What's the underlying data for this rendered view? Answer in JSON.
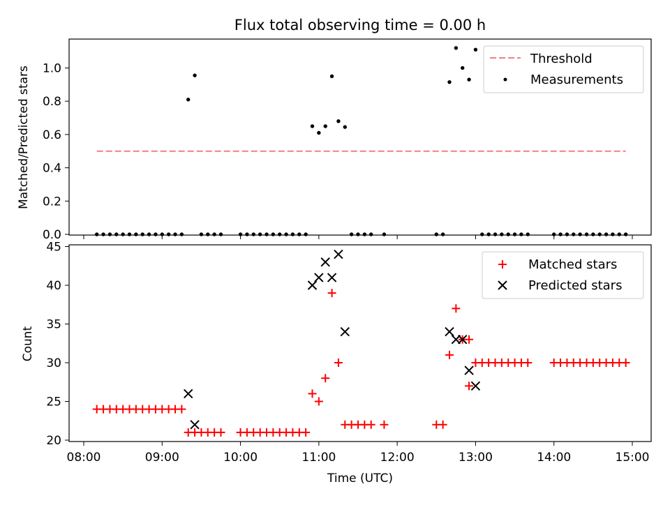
{
  "chart_data": [
    {
      "type": "scatter",
      "title": "Flux total observing time = 0.00 h",
      "ylabel": "Matched/Predicted stars",
      "xlabel": "",
      "xlim": [
        "08:00",
        "15:00"
      ],
      "ylim": [
        0,
        1.17
      ],
      "yticks": [
        {
          "v": 0.0,
          "label": "0.0"
        },
        {
          "v": 0.2,
          "label": "0.2"
        },
        {
          "v": 0.4,
          "label": "0.4"
        },
        {
          "v": 0.6,
          "label": "0.6"
        },
        {
          "v": 0.8,
          "label": "0.8"
        },
        {
          "v": 1.0,
          "label": "1.0"
        }
      ],
      "legend": "top-right",
      "threshold": {
        "name": "Threshold",
        "value": 0.5,
        "x": [
          "08:10",
          "14:55"
        ],
        "color": "#f08080"
      },
      "series": [
        {
          "name": "Measurements",
          "color": "#000000",
          "points": [
            [
              "08:10",
              0
            ],
            [
              "08:15",
              0
            ],
            [
              "08:20",
              0
            ],
            [
              "08:25",
              0
            ],
            [
              "08:30",
              0
            ],
            [
              "08:35",
              0
            ],
            [
              "08:40",
              0
            ],
            [
              "08:45",
              0
            ],
            [
              "08:50",
              0
            ],
            [
              "08:55",
              0
            ],
            [
              "09:00",
              0
            ],
            [
              "09:05",
              0
            ],
            [
              "09:10",
              0
            ],
            [
              "09:15",
              0
            ],
            [
              "09:20",
              0.81
            ],
            [
              "09:25",
              0.955
            ],
            [
              "09:30",
              0
            ],
            [
              "09:35",
              0
            ],
            [
              "09:40",
              0
            ],
            [
              "09:45",
              0
            ],
            [
              "10:00",
              0
            ],
            [
              "10:05",
              0
            ],
            [
              "10:10",
              0
            ],
            [
              "10:15",
              0
            ],
            [
              "10:20",
              0
            ],
            [
              "10:25",
              0
            ],
            [
              "10:30",
              0
            ],
            [
              "10:35",
              0
            ],
            [
              "10:40",
              0
            ],
            [
              "10:45",
              0
            ],
            [
              "10:50",
              0
            ],
            [
              "10:55",
              0.65
            ],
            [
              "11:00",
              0.61
            ],
            [
              "11:05",
              0.65
            ],
            [
              "11:10",
              0.95
            ],
            [
              "11:15",
              0.68
            ],
            [
              "11:20",
              0.645
            ],
            [
              "11:25",
              0
            ],
            [
              "11:30",
              0
            ],
            [
              "11:35",
              0
            ],
            [
              "11:40",
              0
            ],
            [
              "11:50",
              0
            ],
            [
              "12:30",
              0
            ],
            [
              "12:35",
              0
            ],
            [
              "12:40",
              0.915
            ],
            [
              "12:45",
              1.12
            ],
            [
              "12:50",
              1.0
            ],
            [
              "12:55",
              0.93
            ],
            [
              "13:00",
              1.11
            ],
            [
              "13:05",
              0
            ],
            [
              "13:10",
              0
            ],
            [
              "13:15",
              0
            ],
            [
              "13:20",
              0
            ],
            [
              "13:25",
              0
            ],
            [
              "13:30",
              0
            ],
            [
              "13:35",
              0
            ],
            [
              "13:40",
              0
            ],
            [
              "14:00",
              0
            ],
            [
              "14:05",
              0
            ],
            [
              "14:10",
              0
            ],
            [
              "14:15",
              0
            ],
            [
              "14:20",
              0
            ],
            [
              "14:25",
              0
            ],
            [
              "14:30",
              0
            ],
            [
              "14:35",
              0
            ],
            [
              "14:40",
              0
            ],
            [
              "14:45",
              0
            ],
            [
              "14:50",
              0
            ],
            [
              "14:55",
              0
            ]
          ]
        }
      ]
    },
    {
      "type": "scatter",
      "title": "",
      "ylabel": "Count",
      "xlabel": "Time (UTC)",
      "xlim": [
        "08:00",
        "15:00"
      ],
      "ylim": [
        20,
        45
      ],
      "yticks": [
        {
          "v": 20,
          "label": "20"
        },
        {
          "v": 25,
          "label": "25"
        },
        {
          "v": 30,
          "label": "30"
        },
        {
          "v": 35,
          "label": "35"
        },
        {
          "v": 40,
          "label": "40"
        },
        {
          "v": 45,
          "label": "45"
        }
      ],
      "xticks": [
        "08:00",
        "09:00",
        "10:00",
        "11:00",
        "12:00",
        "13:00",
        "14:00",
        "15:00"
      ],
      "legend": "top-right",
      "series": [
        {
          "name": "Matched stars",
          "color": "#ff0000",
          "marker": "plus",
          "points": [
            [
              "08:10",
              24
            ],
            [
              "08:15",
              24
            ],
            [
              "08:20",
              24
            ],
            [
              "08:25",
              24
            ],
            [
              "08:30",
              24
            ],
            [
              "08:35",
              24
            ],
            [
              "08:40",
              24
            ],
            [
              "08:45",
              24
            ],
            [
              "08:50",
              24
            ],
            [
              "08:55",
              24
            ],
            [
              "09:00",
              24
            ],
            [
              "09:05",
              24
            ],
            [
              "09:10",
              24
            ],
            [
              "09:15",
              24
            ],
            [
              "09:20",
              21
            ],
            [
              "09:25",
              21
            ],
            [
              "09:30",
              21
            ],
            [
              "09:35",
              21
            ],
            [
              "09:40",
              21
            ],
            [
              "09:45",
              21
            ],
            [
              "10:00",
              21
            ],
            [
              "10:05",
              21
            ],
            [
              "10:10",
              21
            ],
            [
              "10:15",
              21
            ],
            [
              "10:20",
              21
            ],
            [
              "10:25",
              21
            ],
            [
              "10:30",
              21
            ],
            [
              "10:35",
              21
            ],
            [
              "10:40",
              21
            ],
            [
              "10:45",
              21
            ],
            [
              "10:50",
              21
            ],
            [
              "10:55",
              26
            ],
            [
              "11:00",
              25
            ],
            [
              "11:05",
              28
            ],
            [
              "11:10",
              39
            ],
            [
              "11:15",
              30
            ],
            [
              "11:20",
              22
            ],
            [
              "11:25",
              22
            ],
            [
              "11:30",
              22
            ],
            [
              "11:35",
              22
            ],
            [
              "11:40",
              22
            ],
            [
              "11:50",
              22
            ],
            [
              "12:30",
              22
            ],
            [
              "12:35",
              22
            ],
            [
              "12:40",
              31
            ],
            [
              "12:45",
              37
            ],
            [
              "12:50",
              33
            ],
            [
              "12:55",
              33
            ],
            [
              "12:55",
              27
            ],
            [
              "13:00",
              30
            ],
            [
              "13:05",
              30
            ],
            [
              "13:10",
              30
            ],
            [
              "13:15",
              30
            ],
            [
              "13:20",
              30
            ],
            [
              "13:25",
              30
            ],
            [
              "13:30",
              30
            ],
            [
              "13:35",
              30
            ],
            [
              "13:40",
              30
            ],
            [
              "14:00",
              30
            ],
            [
              "14:05",
              30
            ],
            [
              "14:10",
              30
            ],
            [
              "14:15",
              30
            ],
            [
              "14:20",
              30
            ],
            [
              "14:25",
              30
            ],
            [
              "14:30",
              30
            ],
            [
              "14:35",
              30
            ],
            [
              "14:40",
              30
            ],
            [
              "14:45",
              30
            ],
            [
              "14:50",
              30
            ],
            [
              "14:55",
              30
            ]
          ]
        },
        {
          "name": "Predicted stars",
          "color": "#000000",
          "marker": "x",
          "points": [
            [
              "09:20",
              26
            ],
            [
              "09:25",
              22
            ],
            [
              "10:55",
              40
            ],
            [
              "11:00",
              41
            ],
            [
              "11:05",
              43
            ],
            [
              "11:10",
              41
            ],
            [
              "11:15",
              44
            ],
            [
              "11:20",
              34
            ],
            [
              "12:40",
              34
            ],
            [
              "12:45",
              33
            ],
            [
              "12:50",
              33
            ],
            [
              "12:55",
              29
            ],
            [
              "13:00",
              27
            ]
          ]
        }
      ]
    }
  ]
}
